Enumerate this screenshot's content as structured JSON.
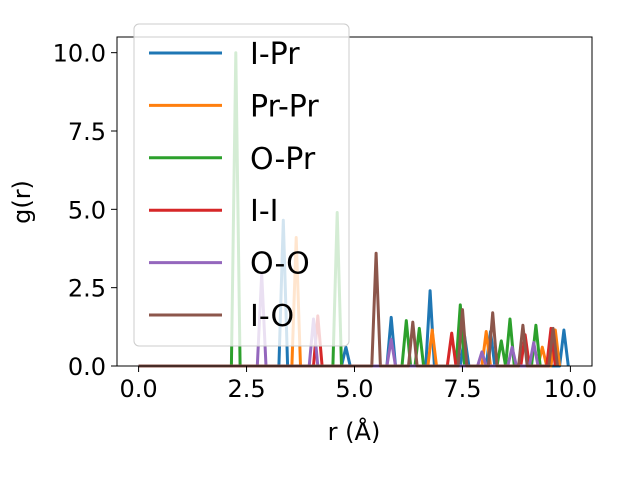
{
  "chart_data": {
    "type": "line",
    "xlabel": "r (Å)",
    "ylabel": "g(r)",
    "xlim": [
      -0.5,
      10.5
    ],
    "ylim": [
      0,
      10.5
    ],
    "x_ticks": [
      "0.0",
      "2.5",
      "5.0",
      "7.5",
      "10.0"
    ],
    "y_ticks": [
      "0.0",
      "2.5",
      "5.0",
      "7.5",
      "10.0"
    ],
    "legend_position": "upper-left",
    "grid": false,
    "series": [
      {
        "name": "I-Pr",
        "color": "#1f77b4",
        "x": [
          0.0,
          3.25,
          3.35,
          3.45,
          3.55,
          4.7,
          4.8,
          4.9,
          5.75,
          5.85,
          5.95,
          6.65,
          6.75,
          6.85,
          7.45,
          7.55,
          7.65,
          8.05,
          8.15,
          8.25,
          9.75,
          9.85,
          9.95
        ],
        "y": [
          0.0,
          0.0,
          4.65,
          0.0,
          0.0,
          0.0,
          0.6,
          0.0,
          0.0,
          1.55,
          0.0,
          0.0,
          2.4,
          0.0,
          0.0,
          0.95,
          0.0,
          0.0,
          1.1,
          0.0,
          0.0,
          1.15,
          0.0
        ]
      },
      {
        "name": "Pr-Pr",
        "color": "#ff7f0e",
        "x": [
          0.0,
          3.55,
          3.65,
          3.75,
          6.7,
          6.8,
          6.9,
          7.95,
          8.05,
          8.15,
          9.25,
          9.35,
          9.45,
          9.55,
          9.65,
          9.75
        ],
        "y": [
          0.0,
          0.0,
          4.1,
          0.0,
          0.0,
          1.15,
          0.0,
          0.0,
          1.1,
          0.0,
          0.0,
          0.6,
          0.0,
          0.0,
          1.15,
          0.0
        ]
      },
      {
        "name": "O-Pr",
        "color": "#2ca02c",
        "x": [
          0.0,
          2.15,
          2.25,
          2.35,
          4.5,
          4.6,
          4.7,
          6.1,
          6.2,
          6.3,
          6.4,
          6.5,
          6.6,
          7.35,
          7.45,
          7.55,
          8.3,
          8.4,
          8.5,
          8.6,
          8.7,
          9.1,
          9.2,
          9.3,
          9.4
        ],
        "y": [
          0.0,
          0.0,
          10.0,
          0.0,
          0.0,
          4.9,
          0.0,
          0.0,
          1.45,
          0.0,
          0.0,
          1.2,
          0.0,
          0.0,
          1.95,
          0.0,
          0.0,
          0.8,
          0.0,
          1.5,
          0.0,
          0.0,
          1.3,
          0.0,
          0.0
        ]
      },
      {
        "name": "I-I",
        "color": "#d62728",
        "x": [
          0.0,
          4.05,
          4.15,
          4.25,
          7.15,
          7.25,
          7.35,
          8.85,
          8.95,
          9.05,
          9.45,
          9.55,
          9.65
        ],
        "y": [
          0.0,
          0.0,
          1.6,
          0.0,
          0.0,
          1.05,
          0.0,
          0.0,
          1.0,
          0.0,
          0.0,
          1.2,
          0.0
        ]
      },
      {
        "name": "O-O",
        "color": "#9467bd",
        "x": [
          0.0,
          2.75,
          2.85,
          2.95,
          3.95,
          4.05,
          4.15,
          5.75,
          5.85,
          5.95,
          7.85,
          7.95,
          8.05,
          8.55,
          8.65,
          8.75,
          9.05,
          9.15,
          9.25
        ],
        "y": [
          0.0,
          0.0,
          2.95,
          0.0,
          0.0,
          1.5,
          0.0,
          0.0,
          0.85,
          0.0,
          0.0,
          0.45,
          0.0,
          0.0,
          0.6,
          0.0,
          0.0,
          0.75,
          0.0
        ]
      },
      {
        "name": "I-O",
        "color": "#8c564b",
        "x": [
          0.0,
          5.4,
          5.5,
          5.6,
          6.25,
          6.35,
          6.45,
          7.4,
          7.5,
          7.6,
          8.1,
          8.2,
          8.3,
          8.8,
          8.9,
          9.0,
          9.5,
          9.6,
          9.7
        ],
        "y": [
          0.0,
          0.0,
          3.6,
          0.0,
          0.0,
          1.4,
          0.0,
          0.0,
          1.8,
          0.0,
          0.0,
          1.7,
          0.0,
          0.0,
          1.3,
          0.0,
          0.0,
          1.2,
          0.0
        ]
      }
    ]
  }
}
